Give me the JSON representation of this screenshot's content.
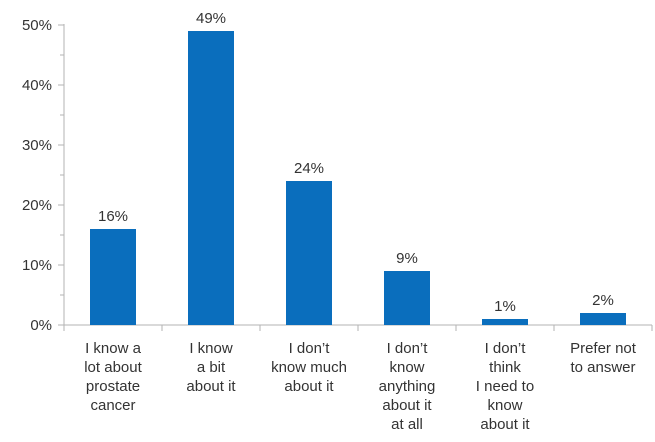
{
  "chart_data": {
    "type": "bar",
    "categories": [
      [
        "I know a",
        "lot about",
        "prostate",
        "cancer"
      ],
      [
        "I know",
        "a bit",
        "about it"
      ],
      [
        "I don’t",
        "know much",
        "about it"
      ],
      [
        "I don’t",
        "know",
        "anything",
        "about it",
        "at all"
      ],
      [
        "I don’t",
        "think",
        "I need to",
        "know",
        "about it"
      ],
      [
        "Prefer not",
        "to answer"
      ]
    ],
    "values": [
      16,
      49,
      24,
      9,
      1,
      2
    ],
    "data_labels": [
      "16%",
      "49%",
      "24%",
      "9%",
      "1%",
      "2%"
    ],
    "y_ticks": [
      0,
      10,
      20,
      30,
      40,
      50
    ],
    "y_tick_labels": [
      "0%",
      "10%",
      "20%",
      "30%",
      "40%",
      "50%"
    ],
    "ylim": [
      0,
      50
    ],
    "title": "",
    "xlabel": "",
    "ylabel": "",
    "grid": false,
    "bar_color": "#0a6ebd",
    "axis_color": "#b3b3b3"
  }
}
